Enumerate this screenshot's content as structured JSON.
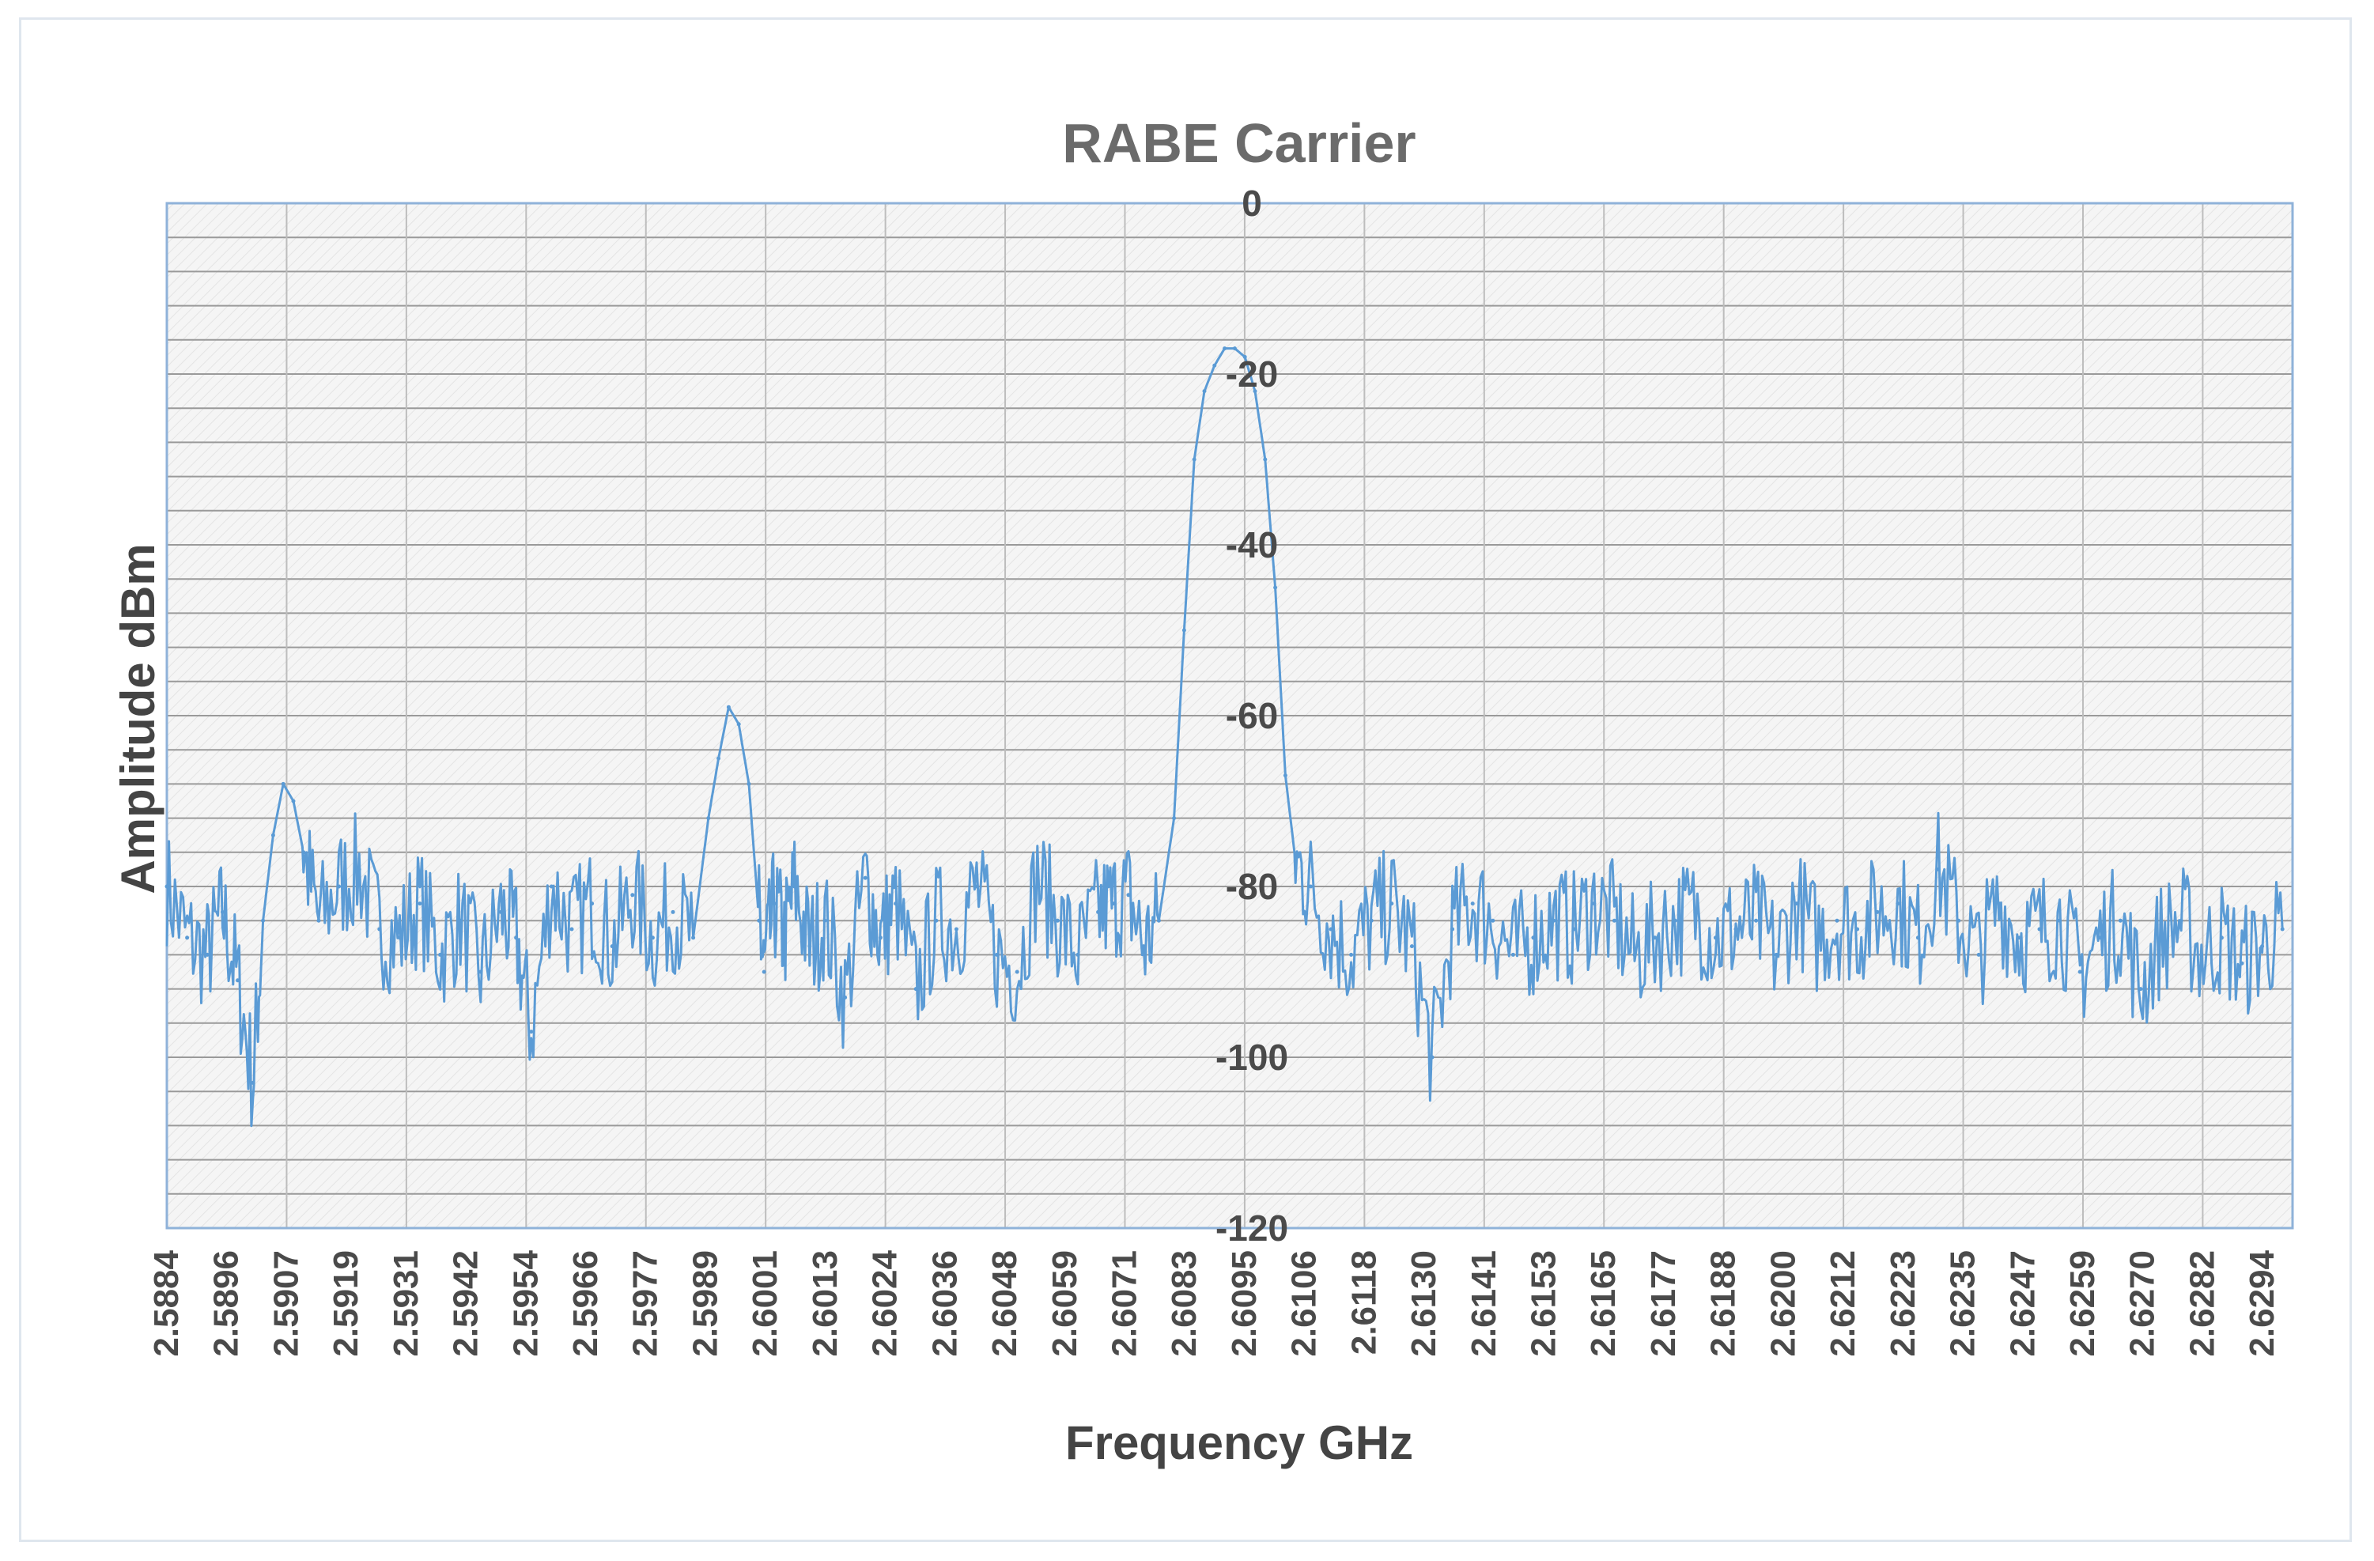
{
  "chart_data": {
    "type": "line",
    "title": "RABE Carrier",
    "xlabel": "Frequency GHz",
    "ylabel": "Amplitude dBm",
    "ylim": [
      -120,
      0
    ],
    "yticks": [
      0,
      -20,
      -40,
      -60,
      -80,
      -100,
      -120
    ],
    "ytick_labels": [
      "0",
      "-20",
      "-40",
      "-60",
      "-80",
      "-100",
      "-120"
    ],
    "xlim": [
      2.5884,
      2.6304
    ],
    "xtick_labels": [
      "2.5884",
      "2.5896",
      "2.5907",
      "2.5919",
      "2.5931",
      "2.5942",
      "2.5954",
      "2.5966",
      "2.5977",
      "2.5989",
      "2.6001",
      "2.6013",
      "2.6024",
      "2.6036",
      "2.6048",
      "2.6059",
      "2.6071",
      "2.6083",
      "2.6095",
      "2.6106",
      "2.6118",
      "2.6130",
      "2.6141",
      "2.6153",
      "2.6165",
      "2.6177",
      "2.6188",
      "2.6200",
      "2.6212",
      "2.6223",
      "2.6235",
      "2.6247",
      "2.6259",
      "2.6270",
      "2.6282",
      "2.6294"
    ],
    "grid": true,
    "series": [
      {
        "color": "#5b9bd5",
        "x": [
          2.5884,
          2.5888,
          2.5892,
          2.5895,
          2.5898,
          2.5901,
          2.5903,
          2.5905,
          2.5907,
          2.5909,
          2.5911,
          2.5914,
          2.5918,
          2.5922,
          2.5926,
          2.593,
          2.5934,
          2.5938,
          2.5942,
          2.5946,
          2.595,
          2.5953,
          2.5956,
          2.596,
          2.5964,
          2.5968,
          2.5972,
          2.5976,
          2.598,
          2.5984,
          2.5988,
          2.5991,
          2.5993,
          2.5995,
          2.5997,
          2.5999,
          2.6001,
          2.6002,
          2.6004,
          2.6006,
          2.6008,
          2.6011,
          2.6014,
          2.6018,
          2.6022,
          2.6025,
          2.6028,
          2.6032,
          2.6036,
          2.604,
          2.6044,
          2.6048,
          2.6052,
          2.6056,
          2.606,
          2.6064,
          2.6068,
          2.6071,
          2.6074,
          2.6077,
          2.608,
          2.6083,
          2.6085,
          2.6087,
          2.6089,
          2.6091,
          2.6093,
          2.6095,
          2.6097,
          2.6099,
          2.6101,
          2.6103,
          2.6105,
          2.6107,
          2.611,
          2.6114,
          2.6118,
          2.6122,
          2.6126,
          2.613,
          2.6134,
          2.6138,
          2.6142,
          2.6146,
          2.615,
          2.6154,
          2.6158,
          2.6162,
          2.6166,
          2.617,
          2.6174,
          2.6178,
          2.6182,
          2.6186,
          2.619,
          2.6194,
          2.6198,
          2.6202,
          2.6206,
          2.621,
          2.6214,
          2.6218,
          2.6222,
          2.6226,
          2.623,
          2.6234,
          2.6238,
          2.6242,
          2.6246,
          2.625,
          2.6254,
          2.6258,
          2.6262,
          2.6266,
          2.627,
          2.6274,
          2.6278,
          2.6282,
          2.6286,
          2.629,
          2.6294,
          2.6298,
          2.6302
        ],
        "y": [
          -80,
          -86,
          -88,
          -83,
          -91,
          -103,
          -84,
          -74,
          -68,
          -70,
          -76,
          -84,
          -80,
          -78,
          -85,
          -86,
          -82,
          -88,
          -84,
          -90,
          -83,
          -86,
          -97,
          -80,
          -85,
          -82,
          -87,
          -81,
          -86,
          -83,
          -86,
          -72,
          -65,
          -59,
          -61,
          -68,
          -84,
          -90,
          -82,
          -86,
          -80,
          -87,
          -84,
          -93,
          -79,
          -86,
          -82,
          -92,
          -84,
          -85,
          -80,
          -88,
          -90,
          -79,
          -84,
          -88,
          -83,
          -82,
          -81,
          -87,
          -84,
          -72,
          -50,
          -30,
          -22,
          -19,
          -17,
          -17,
          -18,
          -22,
          -30,
          -45,
          -67,
          -77,
          -80,
          -85,
          -88,
          -84,
          -82,
          -87,
          -100,
          -85,
          -82,
          -84,
          -88,
          -86,
          -84,
          -85,
          -82,
          -84,
          -88,
          -86,
          -84,
          -83,
          -86,
          -85,
          -84,
          -88,
          -82,
          -86,
          -84,
          -85,
          -83,
          -82,
          -86,
          -78,
          -84,
          -88,
          -82,
          -86,
          -85,
          -84,
          -90,
          -86,
          -84,
          -92,
          -86,
          -84,
          -88,
          -86,
          -89,
          -87,
          -85
        ]
      }
    ]
  }
}
